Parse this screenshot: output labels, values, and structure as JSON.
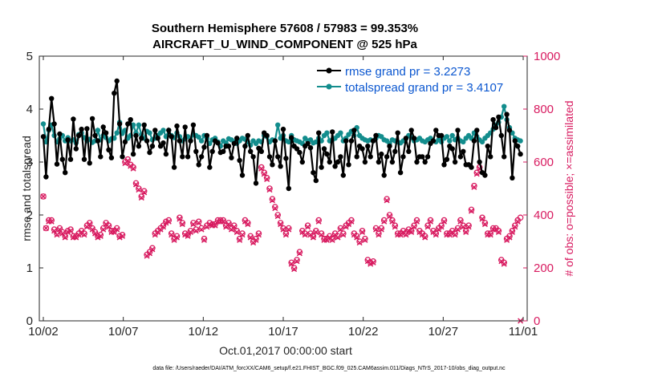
{
  "chart_data": {
    "type": "line",
    "title_line1": "Southern Hemisphere 57608 / 57983 = 99.353%",
    "title_line2": "AIRCRAFT_U_WIND_COMPONENT @ 525 hPa",
    "xlabel": "Oct.01,2017 00:00:00 start",
    "ylabel": "rmse and totalspread",
    "ylabel_right": "# of obs: o=possible; ×=assimilated",
    "x_tick_labels": [
      "10/02",
      "10/07",
      "10/12",
      "10/17",
      "10/22",
      "10/27",
      "11/01"
    ],
    "x_tick_days": [
      1,
      6,
      11,
      16,
      21,
      26,
      31
    ],
    "xlim": [
      0.75,
      31.25
    ],
    "ylim": [
      0,
      5
    ],
    "y_ticks": [
      "0",
      "1",
      "2",
      "3",
      "4",
      "5"
    ],
    "ylim_right": [
      0,
      1000
    ],
    "y_ticks_right": [
      "0",
      "200",
      "400",
      "600",
      "800",
      "1000"
    ],
    "colors": {
      "rmse": "#000000",
      "spread": "#138d8d",
      "obs": "#d81b60",
      "legend_text": "#0b57d0"
    },
    "legend": [
      {
        "label": "rmse grand pr = 3.2273",
        "color": "#000000"
      },
      {
        "label": "totalspread grand pr = 3.4107",
        "color": "#138d8d"
      }
    ],
    "footnote": "data file: /Users/raeder/DAI/ATM_forcXX/CAM6_setup/f.e21.FHIST_BGC.f09_025.CAM6assim.011/Diags_NTrS_2017-10/obs_diag_output.nc",
    "series": [
      {
        "name": "rmse",
        "values": [
          3.48,
          2.72,
          3.62,
          4.2,
          3.72,
          2.96,
          3.53,
          3.05,
          2.8,
          3.42,
          3.05,
          3.81,
          3.25,
          3.5,
          3.62,
          3.05,
          3.63,
          2.98,
          3.82,
          3.5,
          3.4,
          3.1,
          3.66,
          3.55,
          3.23,
          3.08,
          4.3,
          4.53,
          3.72,
          3.1,
          3.38,
          3.72,
          3.8,
          3.15,
          3.5,
          3.3,
          3.45,
          3.7,
          3.4,
          3.18,
          3.3,
          3.6,
          3.45,
          3.3,
          3.36,
          3.15,
          3.6,
          3.48,
          2.9,
          3.68,
          3.4,
          3.1,
          3.66,
          3.1,
          3.4,
          3.7,
          3.2,
          2.95,
          3.1,
          3.28,
          3.5,
          2.9,
          3.2,
          3.4,
          3.36,
          3.18,
          3.2,
          3.3,
          3.3,
          3.08,
          3.35,
          3.45,
          3.03,
          2.75,
          3.3,
          3.5,
          3.2,
          3.1,
          2.6,
          3.26,
          3.2,
          3.55,
          3.5,
          3.1,
          2.95,
          3.4,
          3.1,
          2.92,
          3.62,
          3.07,
          2.5,
          3.46,
          3.3,
          3.25,
          3.18,
          3.0,
          3.3,
          3.35,
          3.27,
          2.8,
          2.65,
          3.55,
          2.9,
          3.25,
          3.15,
          3.0,
          3.57,
          2.92,
          3.0,
          3.1,
          2.75,
          3.4,
          2.95,
          3.4,
          3.6,
          3.1,
          3.3,
          3.25,
          3.0,
          3.3,
          3.1,
          3.4,
          3.5,
          3.0,
          3.15,
          2.75,
          3.1,
          3.3,
          3.0,
          3.2,
          3.55,
          2.8,
          3.1,
          3.45,
          3.2,
          3.6,
          3.45,
          3.0,
          3.1,
          3.1,
          3.0,
          3.1,
          3.35,
          3.4,
          3.6,
          3.5,
          3.5,
          2.95,
          3.05,
          3.3,
          3.25,
          3.0,
          3.6,
          3.1,
          3.2,
          2.95,
          2.95,
          2.9,
          3.4,
          3.6,
          3.0,
          2.8,
          2.75,
          3.3,
          3.1,
          3.8,
          3.65,
          3.85,
          3.5,
          3.1,
          3.9,
          3.6,
          2.7,
          3.4,
          3.3,
          3.15
        ]
      },
      {
        "name": "totalspread",
        "values": [
          3.72,
          3.38,
          3.6,
          3.7,
          3.5,
          3.38,
          3.44,
          3.5,
          3.4,
          3.46,
          3.4,
          3.42,
          3.36,
          3.52,
          3.55,
          3.46,
          3.4,
          3.43,
          3.37,
          3.4,
          3.6,
          3.42,
          3.5,
          3.46,
          3.4,
          3.44,
          3.45,
          3.55,
          3.75,
          3.54,
          3.6,
          3.45,
          3.5,
          3.7,
          3.55,
          3.7,
          3.52,
          3.45,
          3.58,
          3.55,
          3.42,
          3.45,
          3.5,
          3.55,
          3.6,
          3.48,
          3.6,
          3.5,
          3.46,
          3.55,
          3.48,
          3.4,
          3.44,
          3.48,
          3.4,
          3.52,
          3.5,
          3.47,
          3.4,
          3.5,
          3.45,
          3.35,
          3.42,
          3.45,
          3.38,
          3.3,
          3.4,
          3.36,
          3.44,
          3.42,
          3.38,
          3.35,
          3.4,
          3.45,
          3.43,
          3.38,
          3.32,
          3.4,
          3.35,
          3.4,
          3.38,
          3.5,
          3.48,
          3.38,
          3.42,
          3.4,
          3.7,
          3.45,
          3.5,
          3.4,
          3.38,
          3.5,
          3.42,
          3.4,
          3.38,
          3.35,
          3.45,
          3.4,
          3.42,
          3.36,
          3.38,
          3.45,
          3.4,
          3.5,
          3.55,
          3.4,
          3.42,
          3.45,
          3.5,
          3.55,
          3.4,
          3.45,
          3.52,
          3.58,
          3.5,
          3.65,
          3.5,
          3.45,
          3.42,
          3.4,
          3.42,
          3.4,
          3.45,
          3.5,
          3.48,
          3.42,
          3.4,
          3.35,
          3.42,
          3.4,
          3.38,
          3.36,
          3.4,
          3.44,
          3.5,
          3.46,
          3.4,
          3.42,
          3.45,
          3.4,
          3.38,
          3.42,
          3.45,
          3.4,
          3.38,
          3.42,
          3.38,
          3.45,
          3.48,
          3.4,
          3.5,
          3.42,
          3.45,
          3.4,
          3.38,
          3.45,
          3.5,
          3.45,
          3.55,
          3.48,
          3.42,
          3.38,
          3.45,
          3.5,
          3.55,
          3.62,
          3.7,
          3.75,
          3.85,
          4.05,
          3.8,
          3.65,
          3.55,
          3.45,
          3.42,
          3.4
        ]
      },
      {
        "name": "obs_possible",
        "values": [
          470,
          350,
          380,
          380,
          345,
          330,
          350,
          335,
          320,
          340,
          345,
          320,
          320,
          330,
          340,
          330,
          360,
          370,
          350,
          335,
          320,
          325,
          350,
          370,
          360,
          340,
          340,
          350,
          320,
          325,
          600,
          610,
          590,
          580,
          520,
          500,
          470,
          490,
          250,
          260,
          275,
          330,
          340,
          350,
          360,
          375,
          380,
          330,
          310,
          320,
          390,
          370,
          330,
          325,
          340,
          370,
          345,
          375,
          350,
          310,
          360,
          370,
          365,
          365,
          380,
          380,
          380,
          360,
          370,
          350,
          360,
          340,
          310,
          330,
          380,
          370,
          320,
          300,
          310,
          330,
          580,
          560,
          540,
          500,
          460,
          430,
          400,
          370,
          350,
          330,
          350,
          220,
          200,
          230,
          260,
          340,
          330,
          360,
          330,
          320,
          340,
          380,
          330,
          310,
          310,
          320,
          310,
          330,
          320,
          350,
          330,
          360,
          370,
          380,
          330,
          320,
          300,
          340,
          310,
          230,
          220,
          225,
          350,
          330,
          350,
          380,
          460,
          400,
          380,
          360,
          330,
          330,
          340,
          330,
          345,
          340,
          360,
          380,
          340,
          330,
          320,
          360,
          380,
          340,
          330,
          350,
          360,
          380,
          330,
          330,
          340,
          330,
          350,
          380,
          360,
          340,
          360,
          420,
          510,
          560,
          580,
          390,
          370,
          330,
          330,
          350,
          350,
          340,
          230,
          220,
          310,
          320,
          340,
          360,
          380,
          390
        ]
      },
      {
        "name": "obs_assimilated",
        "values": [
          470,
          350,
          375,
          375,
          340,
          325,
          345,
          330,
          315,
          335,
          340,
          315,
          315,
          325,
          335,
          325,
          355,
          365,
          345,
          330,
          315,
          320,
          345,
          365,
          355,
          335,
          335,
          345,
          315,
          320,
          595,
          605,
          585,
          575,
          515,
          495,
          465,
          485,
          245,
          255,
          270,
          325,
          335,
          345,
          355,
          370,
          375,
          325,
          305,
          315,
          385,
          365,
          325,
          320,
          335,
          365,
          340,
          370,
          345,
          305,
          355,
          365,
          360,
          360,
          375,
          375,
          375,
          355,
          365,
          345,
          355,
          335,
          305,
          325,
          375,
          365,
          315,
          295,
          305,
          325,
          575,
          555,
          535,
          495,
          455,
          425,
          395,
          365,
          345,
          325,
          345,
          215,
          195,
          225,
          255,
          335,
          325,
          355,
          325,
          315,
          335,
          375,
          325,
          305,
          305,
          315,
          305,
          325,
          315,
          345,
          325,
          355,
          365,
          375,
          325,
          315,
          295,
          335,
          305,
          225,
          215,
          220,
          345,
          325,
          345,
          375,
          455,
          395,
          375,
          355,
          325,
          325,
          335,
          325,
          340,
          335,
          355,
          375,
          335,
          325,
          315,
          355,
          375,
          335,
          325,
          345,
          355,
          375,
          325,
          325,
          335,
          325,
          345,
          375,
          355,
          335,
          355,
          415,
          505,
          555,
          575,
          385,
          365,
          325,
          325,
          345,
          345,
          335,
          225,
          215,
          305,
          315,
          335,
          355,
          375,
          0
        ]
      }
    ]
  }
}
